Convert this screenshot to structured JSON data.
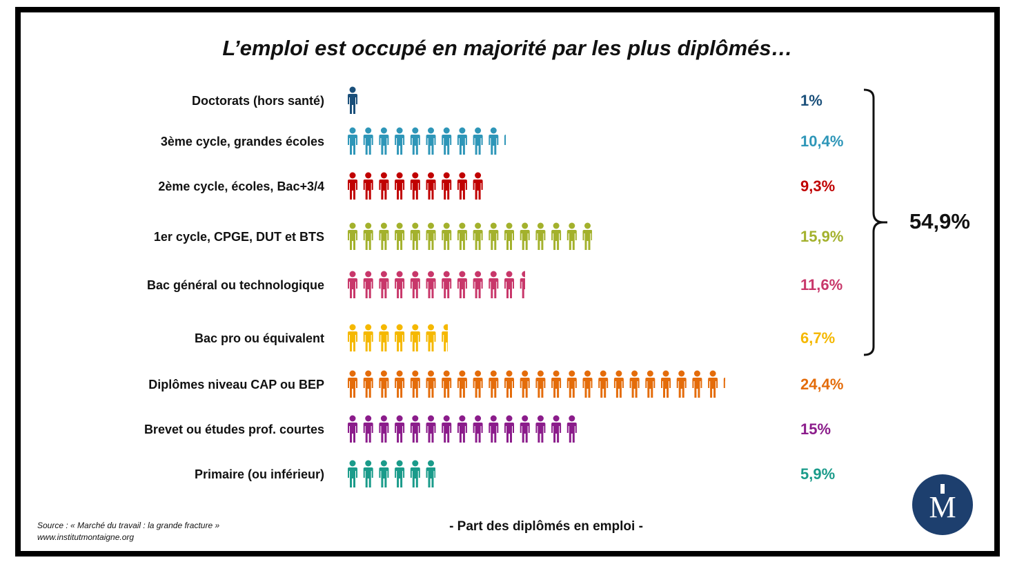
{
  "title": "L’emploi est occupé en majorité par les plus diplômés…",
  "bracket_total": "54,9%",
  "source_line1": "Source : « Marché du travail : la grande fracture »",
  "source_line2": "www.institutmontaigne.org",
  "axis_caption": "- Part des diplômés en emploi -",
  "logo_icon": "institut-montaigne-logo",
  "chart_data": {
    "type": "bar",
    "unit_per_figure": "1%",
    "categories": [
      "Doctorats (hors santé)",
      "3ème cycle, grandes écoles",
      "2ème cycle, écoles, Bac+3/4",
      "1er cycle, CPGE, DUT et BTS",
      "Bac général ou technologique",
      "Bac pro ou équivalent",
      "Diplômes niveau CAP ou BEP",
      "Brevet ou études prof. courtes",
      "Primaire (ou inférieur)"
    ],
    "values": [
      1,
      10.4,
      9.3,
      15.9,
      11.6,
      6.7,
      24.4,
      15,
      5.9
    ],
    "value_labels": [
      "1%",
      "10,4%",
      "9,3%",
      "15,9%",
      "11,6%",
      "6,7%",
      "24,4%",
      "15%",
      "5,9%"
    ],
    "colors": [
      "#1a4f7a",
      "#2e96b8",
      "#c00000",
      "#a3b12c",
      "#c8376a",
      "#f5b800",
      "#e46c0a",
      "#8b1c8b",
      "#1a9b8a"
    ],
    "bracket": {
      "from_category": 0,
      "to_category": 5,
      "label": "54,9%"
    },
    "xlabel": "- Part des diplômés en emploi -",
    "ylabel": ""
  }
}
